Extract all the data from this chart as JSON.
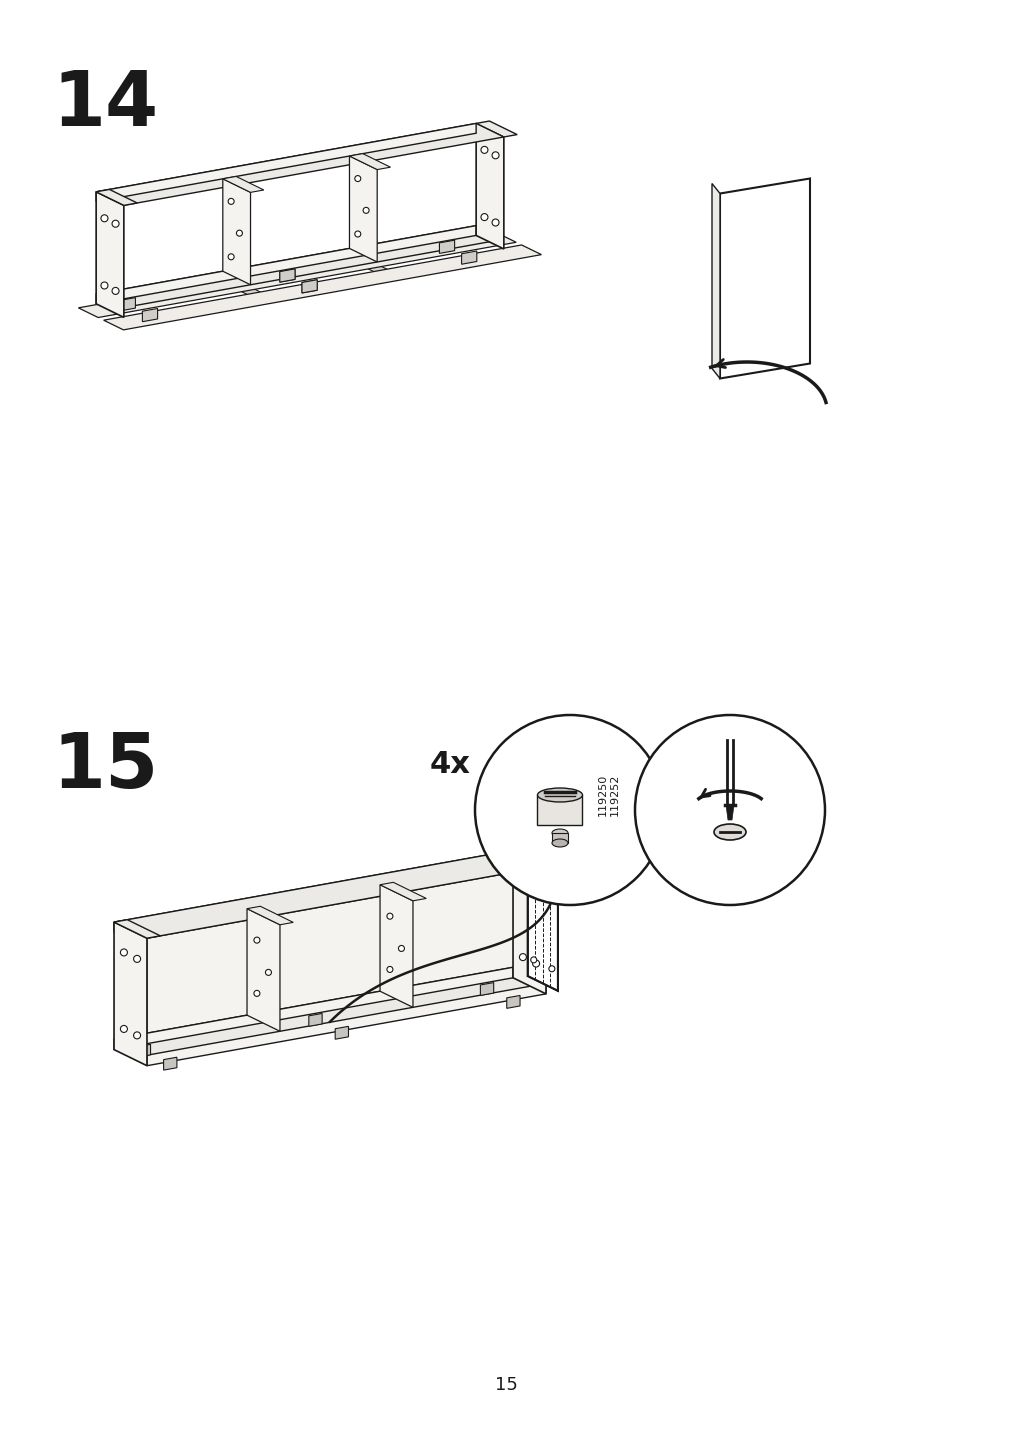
{
  "page_number": "15",
  "step1_number": "14",
  "step2_number": "15",
  "background_color": "#ffffff",
  "line_color": "#1a1a1a",
  "fill_light": "#f5f3f0",
  "fill_mid": "#eceae6",
  "fill_dark": "#e0ddd8",
  "hardware_label": "4x",
  "hardware_ids_line1": "119250",
  "hardware_ids_line2": "119252",
  "fig_width": 10.12,
  "fig_height": 14.32,
  "dpi": 100
}
